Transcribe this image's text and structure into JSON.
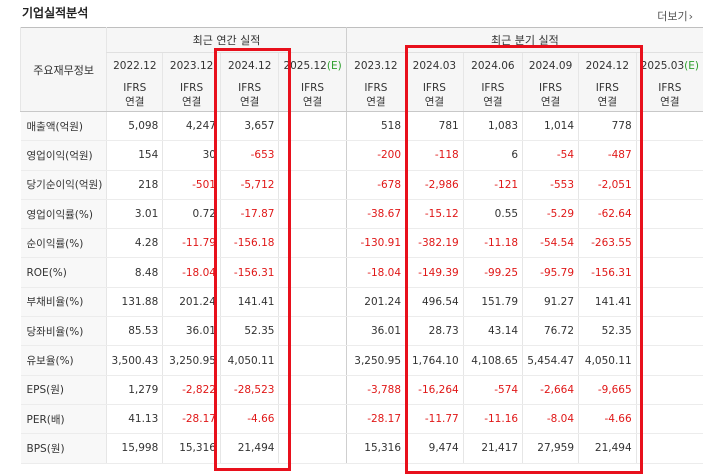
{
  "header": {
    "title": "기업실적분석",
    "more_label": "더보기"
  },
  "table": {
    "corner_label": "주요재무정보",
    "annual_group": "최근 연간 실적",
    "quarter_group": "최근 분기 실적",
    "periods": [
      {
        "label": "2022.12",
        "est": false
      },
      {
        "label": "2023.12",
        "est": false
      },
      {
        "label": "2024.12",
        "est": false
      },
      {
        "label": "2025.12(E)",
        "est": true
      },
      {
        "label": "2023.12",
        "est": false
      },
      {
        "label": "2024.03",
        "est": false
      },
      {
        "label": "2024.06",
        "est": false
      },
      {
        "label": "2024.09",
        "est": false
      },
      {
        "label": "2024.12",
        "est": false
      },
      {
        "label": "2025.03(E)",
        "est": true
      }
    ],
    "ifrs_line1": "IFRS",
    "ifrs_line2": "연결",
    "rows": [
      {
        "label": "매출액(억원)",
        "values": [
          "5,098",
          "4,247",
          "3,657",
          "",
          "518",
          "781",
          "1,083",
          "1,014",
          "778",
          ""
        ]
      },
      {
        "label": "영업이익(억원)",
        "values": [
          "154",
          "30",
          "-653",
          "",
          "-200",
          "-118",
          "6",
          "-54",
          "-487",
          ""
        ]
      },
      {
        "label": "당기순이익(억원)",
        "values": [
          "218",
          "-501",
          "-5,712",
          "",
          "-678",
          "-2,986",
          "-121",
          "-553",
          "-2,051",
          ""
        ]
      },
      {
        "label": "영업이익률(%)",
        "values": [
          "3.01",
          "0.72",
          "-17.87",
          "",
          "-38.67",
          "-15.12",
          "0.55",
          "-5.29",
          "-62.64",
          ""
        ]
      },
      {
        "label": "순이익률(%)",
        "values": [
          "4.28",
          "-11.79",
          "-156.18",
          "",
          "-130.91",
          "-382.19",
          "-11.18",
          "-54.54",
          "-263.55",
          ""
        ]
      },
      {
        "label": "ROE(%)",
        "values": [
          "8.48",
          "-18.04",
          "-156.31",
          "",
          "-18.04",
          "-149.39",
          "-99.25",
          "-95.79",
          "-156.31",
          ""
        ]
      },
      {
        "label": "부채비율(%)",
        "values": [
          "131.88",
          "201.24",
          "141.41",
          "",
          "201.24",
          "496.54",
          "151.79",
          "91.27",
          "141.41",
          ""
        ]
      },
      {
        "label": "당좌비율(%)",
        "values": [
          "85.53",
          "36.01",
          "52.35",
          "",
          "36.01",
          "28.73",
          "43.14",
          "76.72",
          "52.35",
          ""
        ]
      },
      {
        "label": "유보율(%)",
        "values": [
          "3,500.43",
          "3,250.95",
          "4,050.11",
          "",
          "3,250.95",
          "1,764.10",
          "4,108.65",
          "5,454.47",
          "4,050.11",
          ""
        ]
      },
      {
        "label": "EPS(원)",
        "values": [
          "1,279",
          "-2,822",
          "-28,523",
          "",
          "-3,788",
          "-16,264",
          "-574",
          "-2,664",
          "-9,665",
          ""
        ]
      },
      {
        "label": "PER(배)",
        "values": [
          "41.13",
          "-28.17",
          "-4.66",
          "",
          "-28.17",
          "-11.77",
          "-11.16",
          "-8.04",
          "-4.66",
          ""
        ]
      },
      {
        "label": "BPS(원)",
        "values": [
          "15,998",
          "15,316",
          "21,494",
          "",
          "15,316",
          "9,474",
          "21,417",
          "27,959",
          "21,494",
          ""
        ]
      }
    ]
  }
}
